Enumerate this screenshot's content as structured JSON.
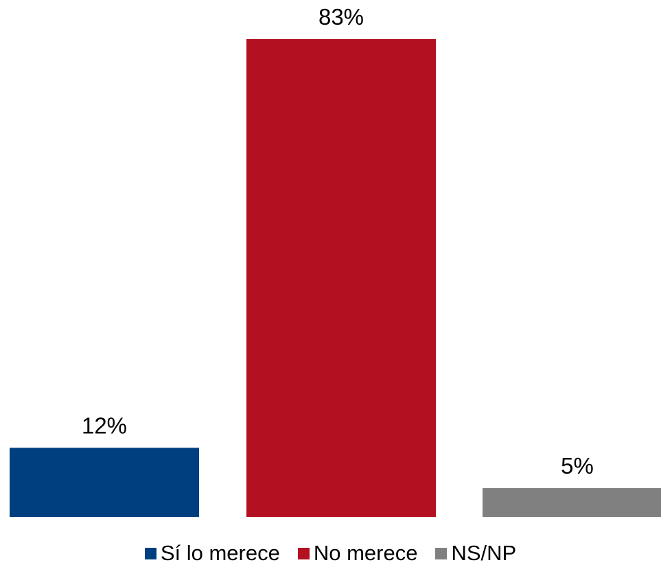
{
  "chart_data": {
    "type": "bar",
    "categories": [
      "Sí lo merece",
      "No merece",
      "NS/NP"
    ],
    "values": [
      12,
      83,
      5
    ],
    "value_labels": [
      "12%",
      "83%",
      "5%"
    ],
    "colors": [
      "#003F7F",
      "#B31121",
      "#808080"
    ],
    "title": "",
    "xlabel": "",
    "ylabel": "",
    "ylim": [
      0,
      83
    ],
    "grid": false,
    "legend_position": "bottom"
  },
  "legend": {
    "items": [
      {
        "label": "Sí lo merece",
        "color": "#003F7F"
      },
      {
        "label": "No merece",
        "color": "#B31121"
      },
      {
        "label": "NS/NP",
        "color": "#808080"
      }
    ]
  }
}
